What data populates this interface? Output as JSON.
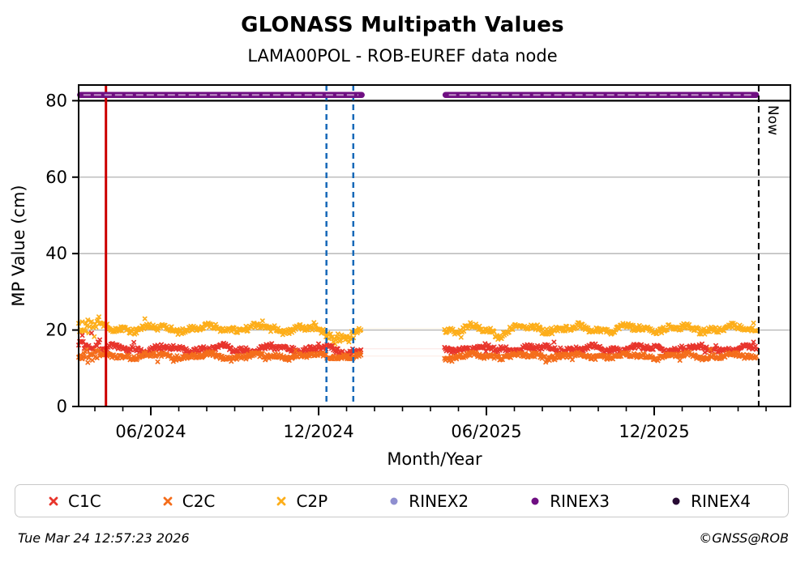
{
  "header": {
    "title": "GLONASS Multipath Values",
    "subtitle": "LAMA00POL - ROB-EUREF data node"
  },
  "footer": {
    "timestamp": "Tue Mar 24 12:57:23 2026",
    "credit": "©GNSS@ROB"
  },
  "legend": {
    "items": [
      {
        "label": "C1C",
        "marker": "x",
        "color": "#e8352c"
      },
      {
        "label": "C2C",
        "marker": "x",
        "color": "#f46d1b"
      },
      {
        "label": "C2P",
        "marker": "x",
        "color": "#fdae1a"
      },
      {
        "label": "RINEX2",
        "marker": "circle",
        "color": "#8f8fd0"
      },
      {
        "label": "RINEX3",
        "marker": "circle",
        "color": "#6f0f82"
      },
      {
        "label": "RINEX4",
        "marker": "circle",
        "color": "#270b33"
      }
    ]
  },
  "chart_data": {
    "type": "scatter",
    "title": "GLONASS Multipath Values",
    "subtitle": "LAMA00POL - ROB-EUREF data node",
    "xlabel": "Month/Year",
    "ylabel": "MP Value (cm)",
    "x_domain_decimal_years": [
      2024.2016,
      2026.3225
    ],
    "ylim": [
      0,
      84.1
    ],
    "yticks": [
      {
        "v": 0,
        "label": "0"
      },
      {
        "v": 20,
        "label": "20"
      },
      {
        "v": 40,
        "label": "40"
      },
      {
        "v": 60,
        "label": "60"
      },
      {
        "v": 80,
        "label": "80"
      }
    ],
    "xticks": [
      {
        "label": "06/2024",
        "t": 2024.4167
      },
      {
        "label": "12/2024",
        "t": 2024.9167
      },
      {
        "label": "06/2025",
        "t": 2025.4167
      },
      {
        "label": "12/2025",
        "t": 2025.9167
      }
    ],
    "minor_xticks_months": {
      "from_decimal_year": 2024.25,
      "to_decimal_year": 2026.25,
      "step_years": 0.0833333
    },
    "grid": {
      "y_values": [
        20,
        40,
        60
      ],
      "color": "#b3b3b3"
    },
    "separator_line": {
      "y": 80,
      "color": "#000000"
    },
    "data_gap_decimal_years": [
      2025.045,
      2025.292
    ],
    "series": [
      {
        "name": "C1C",
        "marker": "x",
        "color": "#e8352c",
        "segments": [
          [
            2024.2016,
            2025.043
          ],
          [
            2025.292,
            2026.222
          ]
        ],
        "band": {
          "mean": 15.1,
          "wave": 0.55,
          "jitter": 0.65
        },
        "start_spread": {
          "until": 2024.265,
          "mult": 3.2,
          "bias_up": 3.5
        },
        "dips": [
          {
            "t": 2024.99,
            "w": 0.04,
            "d": 1.0
          }
        ]
      },
      {
        "name": "C2C",
        "marker": "x",
        "color": "#f46d1b",
        "segments": [
          [
            2024.2016,
            2025.043
          ],
          [
            2025.292,
            2026.222
          ]
        ],
        "band": {
          "mean": 13.2,
          "wave": 0.45,
          "jitter": 0.55
        },
        "start_spread": {
          "until": 2024.265,
          "mult": 2.0,
          "bias_up": 0
        },
        "dips": [
          {
            "t": 2025.31,
            "w": 0.015,
            "d": 1.0
          }
        ]
      },
      {
        "name": "C2P",
        "marker": "x",
        "color": "#fdae1a",
        "segments": [
          [
            2024.2016,
            2025.043
          ],
          [
            2025.292,
            2026.222
          ]
        ],
        "band": {
          "mean": 20.4,
          "wave": 0.6,
          "jitter": 0.7
        },
        "start_spread": {
          "until": 2024.265,
          "mult": 2.6,
          "bias_up": 1.5
        },
        "dips": [
          {
            "t": 2024.975,
            "w": 0.055,
            "d": 2.6
          },
          {
            "t": 2025.33,
            "w": 0.015,
            "d": 1.2
          },
          {
            "t": 2025.455,
            "w": 0.02,
            "d": 1.8
          }
        ]
      },
      {
        "name": "RINEX2",
        "marker": "circle",
        "color": "#8f8fd0",
        "plotted": false
      },
      {
        "name": "RINEX3",
        "marker": "circle",
        "color": "#6f0f82",
        "value": 81.5,
        "segments": [
          [
            2024.206,
            2025.045
          ],
          [
            2025.295,
            2026.22
          ]
        ],
        "inner_highlight_color": "#c9a3cf"
      },
      {
        "name": "RINEX4",
        "marker": "circle",
        "color": "#270b33",
        "plotted": false
      }
    ],
    "event_lines": {
      "red_line": {
        "t": 2024.283,
        "color": "#cc0000",
        "style": "solid"
      },
      "blue_lines": [
        {
          "t": 2024.94
        },
        {
          "t": 2025.02
        }
      ],
      "blue_color": "#1568b8",
      "blue_style": "dashed",
      "now_line": {
        "t": 2026.228,
        "label": "Now",
        "color": "#000000",
        "style": "dashed"
      }
    }
  }
}
